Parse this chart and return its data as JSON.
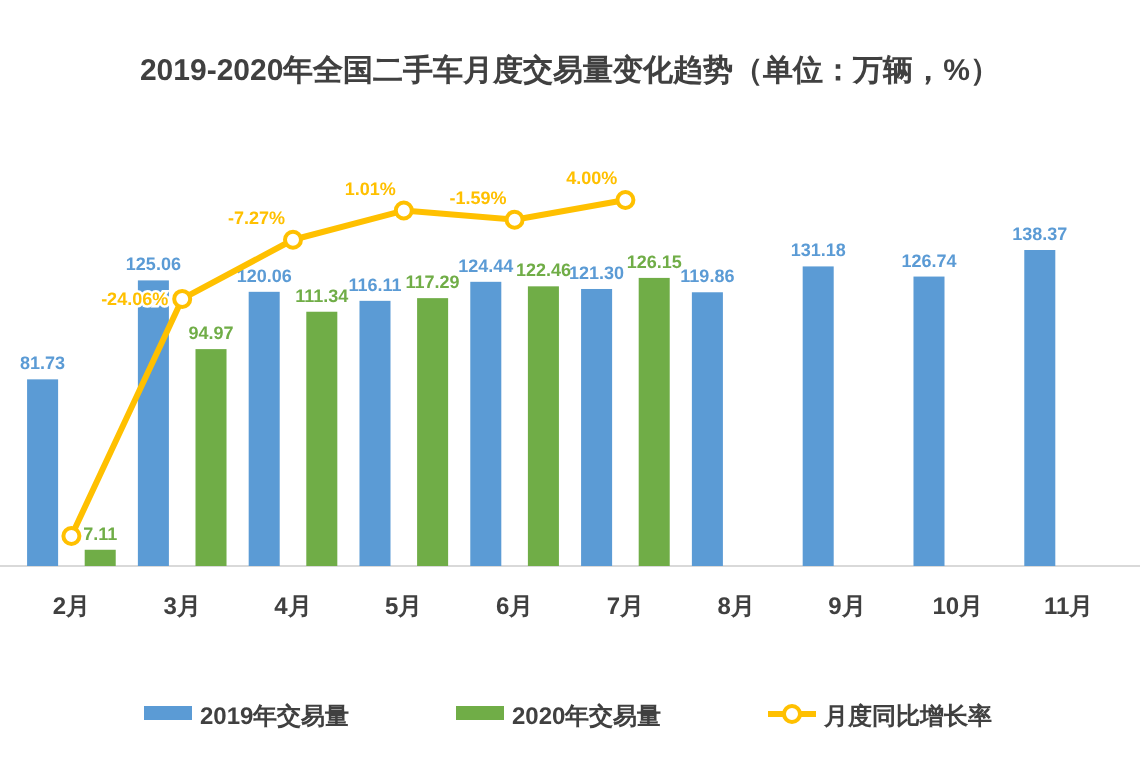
{
  "chart_data": {
    "type": "bar",
    "title": "2019-2020年全国二手车月度交易量变化趋势（单位：万辆，%）",
    "categories": [
      "2月",
      "3月",
      "4月",
      "5月",
      "6月",
      "7月",
      "8月",
      "9月",
      "10月",
      "11月"
    ],
    "series": [
      {
        "name": "2019年交易量",
        "type": "bar",
        "color": "#5b9bd5",
        "values": [
          81.73,
          125.06,
          120.06,
          116.11,
          124.44,
          121.3,
          119.86,
          131.18,
          126.74,
          138.37
        ],
        "value_labels": [
          "81.73",
          "125.06",
          "120.06",
          "116.11",
          "124.44",
          "121.30",
          "119.86",
          "131.18",
          "126.74",
          "138.37"
        ]
      },
      {
        "name": "2020年交易量",
        "type": "bar",
        "color": "#70ad47",
        "values": [
          7.11,
          94.97,
          111.34,
          117.29,
          122.46,
          126.15,
          null,
          null,
          null,
          null
        ],
        "value_labels": [
          "7.11",
          "94.97",
          "111.34",
          "117.29",
          "122.46",
          "126.15",
          null,
          null,
          null,
          null
        ]
      },
      {
        "name": "月度同比增长率",
        "type": "line",
        "axis": "y2",
        "color": "#ffc000",
        "values": [
          -91.3,
          -24.06,
          -7.27,
          1.01,
          -1.59,
          4.0,
          null,
          null,
          null,
          null
        ],
        "value_labels": [
          null,
          "-24.06%",
          "-7.27%",
          "1.01%",
          "-1.59%",
          "4.00%",
          null,
          null,
          null,
          null
        ]
      }
    ],
    "marker": "circle",
    "legend": "bottom",
    "grid": false
  }
}
